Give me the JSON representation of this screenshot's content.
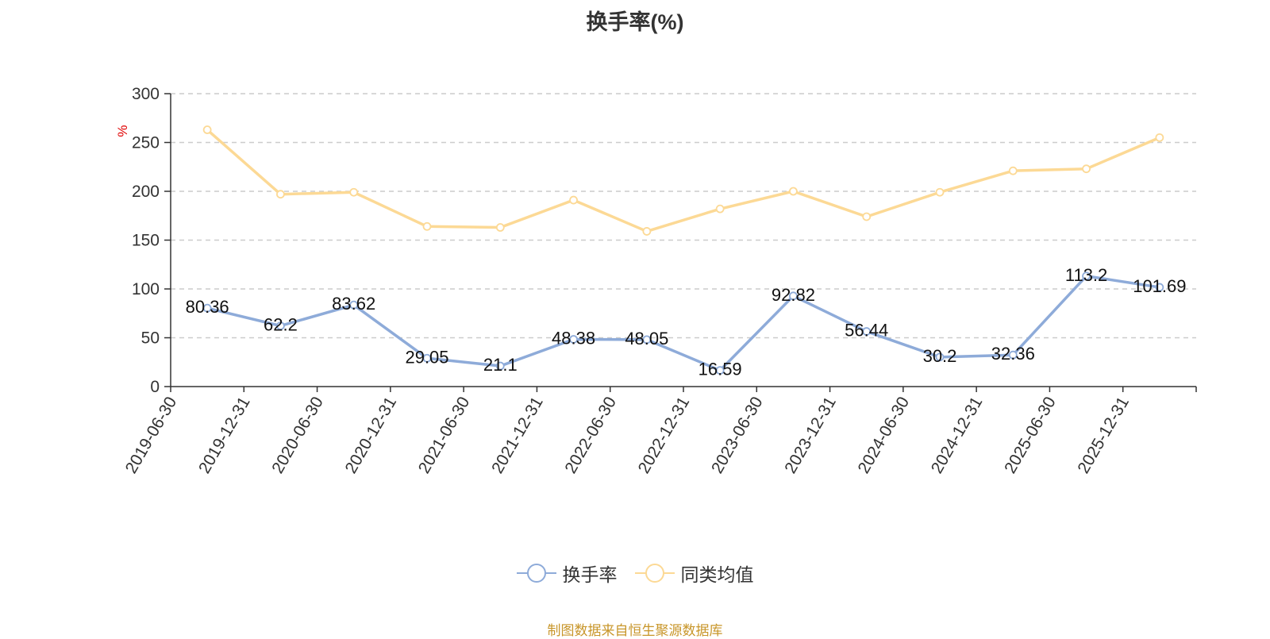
{
  "chart_data": {
    "type": "line",
    "title": "换手率(%)",
    "ylabel": "%",
    "ylim": [
      0,
      300
    ],
    "yticks": [
      0,
      50,
      100,
      150,
      200,
      250,
      300
    ],
    "grid": true,
    "legend_position": "bottom-center",
    "categories": [
      "2019-06-30",
      "2019-12-31",
      "2020-06-30",
      "2020-12-31",
      "2021-06-30",
      "2021-12-31",
      "2022-06-30",
      "2022-12-31",
      "2023-06-30",
      "2023-12-31",
      "2024-06-30",
      "2024-12-31",
      "2025-06-30",
      "2025-12-31"
    ],
    "series": [
      {
        "name": "换手率",
        "color": "#8eabd9",
        "show_labels": true,
        "values": [
          80.36,
          62.2,
          83.62,
          29.05,
          21.1,
          48.38,
          48.05,
          16.59,
          92.82,
          56.44,
          30.2,
          32.36,
          113.2,
          101.69
        ]
      },
      {
        "name": "同类均值",
        "color": "#fcd995",
        "show_labels": false,
        "values": [
          263,
          197,
          199,
          164,
          163,
          191,
          159,
          182,
          200,
          174,
          199,
          221,
          223,
          255
        ]
      }
    ]
  },
  "source_note": "制图数据来自恒生聚源数据库"
}
